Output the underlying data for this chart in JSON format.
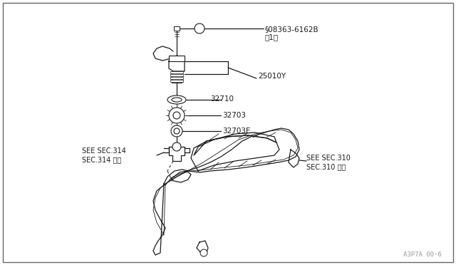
{
  "bg_color": "#ffffff",
  "line_color": "#1a1a1a",
  "fig_width": 6.4,
  "fig_height": 3.72,
  "dpi": 100,
  "watermark": "A3P7A 00·6",
  "label_08363": "§08363-6162B\n（1）",
  "label_25010": "25010Y",
  "label_32710": "32710",
  "label_32703": "32703",
  "label_32703E": "32703E",
  "notes_left_1": "SEE SEC.314",
  "notes_left_2": "SEC.314 参照",
  "notes_right_1": "SEE SEC.310",
  "notes_right_2": "SEC.310 参照",
  "font_size_label": 7.5,
  "font_size_note": 7.0,
  "font_size_watermark": 6.5
}
